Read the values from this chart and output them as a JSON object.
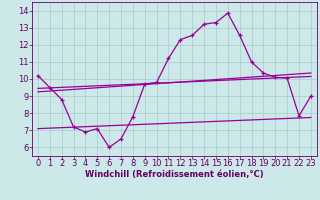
{
  "xlabel": "Windchill (Refroidissement éolien,°C)",
  "bg_color": "#cce8e8",
  "line_color": "#990099",
  "grid_color": "#aacccc",
  "xlim": [
    -0.5,
    23.5
  ],
  "ylim": [
    5.5,
    14.5
  ],
  "xticks": [
    0,
    1,
    2,
    3,
    4,
    5,
    6,
    7,
    8,
    9,
    10,
    11,
    12,
    13,
    14,
    15,
    16,
    17,
    18,
    19,
    20,
    21,
    22,
    23
  ],
  "yticks": [
    6,
    7,
    8,
    9,
    10,
    11,
    12,
    13,
    14
  ],
  "main_x": [
    0,
    1,
    2,
    3,
    4,
    5,
    6,
    7,
    8,
    9,
    10,
    11,
    12,
    13,
    14,
    15,
    16,
    17,
    18,
    19,
    20,
    21,
    22,
    23
  ],
  "main_y": [
    10.2,
    9.5,
    8.8,
    7.2,
    6.9,
    7.1,
    6.0,
    6.5,
    7.8,
    9.7,
    9.8,
    11.2,
    12.3,
    12.55,
    13.2,
    13.3,
    13.85,
    12.55,
    11.0,
    10.35,
    10.1,
    10.05,
    7.85,
    9.0
  ],
  "trend1_x": [
    0,
    23
  ],
  "trend1_y": [
    9.45,
    10.15
  ],
  "trend2_x": [
    0,
    23
  ],
  "trend2_y": [
    9.25,
    10.35
  ],
  "trend3_x": [
    0,
    23
  ],
  "trend3_y": [
    7.1,
    7.75
  ],
  "font_color": "#660066",
  "font_size_label": 6,
  "font_size_tick": 6
}
